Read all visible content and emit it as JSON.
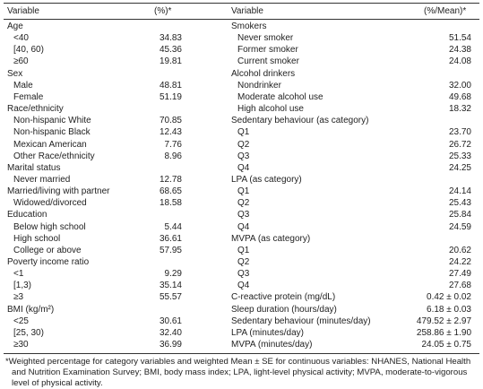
{
  "header": {
    "variable_left": "Variable",
    "value_left": "(%)*",
    "variable_right": "Variable",
    "value_right": "(%/Mean)*"
  },
  "left": [
    {
      "heading": "Age",
      "items": [
        [
          "<40",
          "34.83"
        ],
        [
          "[40, 60)",
          "45.36"
        ],
        [
          "≥60",
          "19.81"
        ]
      ]
    },
    {
      "heading": "Sex",
      "items": [
        [
          "Male",
          "48.81"
        ],
        [
          "Female",
          "51.19"
        ]
      ]
    },
    {
      "heading": "Race/ethnicity",
      "items": [
        [
          "Non-hispanic White",
          "70.85"
        ],
        [
          "Non-hispanic Black",
          "12.43"
        ],
        [
          "Mexican American",
          "7.76"
        ],
        [
          "Other Race/ethnicity",
          "8.96"
        ]
      ]
    },
    {
      "heading": "Marital status",
      "items": [
        [
          "Never married",
          "12.78"
        ]
      ]
    },
    {
      "heading": "Married/living with partner",
      "value": "68.65",
      "items": [
        [
          "Widowed/divorced",
          "18.58"
        ]
      ]
    },
    {
      "heading": "Education",
      "items": [
        [
          "Below high school",
          "5.44"
        ],
        [
          "High school",
          "36.61"
        ],
        [
          "College or above",
          "57.95"
        ]
      ]
    },
    {
      "heading": "Poverty income ratio",
      "items": [
        [
          "<1",
          "9.29"
        ],
        [
          "[1,3)",
          "35.14"
        ],
        [
          "≥3",
          "55.57"
        ]
      ]
    },
    {
      "heading": "BMI (kg/m²)",
      "items": [
        [
          "<25",
          "30.61"
        ],
        [
          "[25, 30)",
          "32.40"
        ],
        [
          "≥30",
          "36.99"
        ]
      ]
    }
  ],
  "right": [
    {
      "heading": "Smokers",
      "items": [
        [
          "Never smoker",
          "51.54"
        ],
        [
          "Former smoker",
          "24.38"
        ],
        [
          "Current smoker",
          "24.08"
        ]
      ]
    },
    {
      "heading": "Alcohol drinkers",
      "items": [
        [
          "Nondrinker",
          "32.00"
        ],
        [
          "Moderate alcohol use",
          "49.68"
        ],
        [
          "High alcohol use",
          "18.32"
        ]
      ]
    },
    {
      "heading": "Sedentary behaviour (as category)",
      "items": [
        [
          "Q1",
          "23.70"
        ],
        [
          "Q2",
          "26.72"
        ],
        [
          "Q3",
          "25.33"
        ],
        [
          "Q4",
          "24.25"
        ]
      ]
    },
    {
      "heading": "LPA (as category)",
      "items": [
        [
          "Q1",
          "24.14"
        ],
        [
          "Q2",
          "25.43"
        ],
        [
          "Q3",
          "25.84"
        ],
        [
          "Q4",
          "24.59"
        ]
      ]
    },
    {
      "heading": "MVPA (as category)",
      "items": [
        [
          "Q1",
          "20.62"
        ],
        [
          "Q2",
          "24.22"
        ],
        [
          "Q3",
          "27.49"
        ],
        [
          "Q4",
          "27.68"
        ]
      ]
    },
    {
      "heading": "C-reactive protein (mg/dL)",
      "value": "0.42 ± 0.02",
      "items": []
    },
    {
      "heading": "Sleep duration (hours/day)",
      "value": "6.18 ± 0.03",
      "items": []
    },
    {
      "heading": "Sedentary behaviour (minutes/day)",
      "value": "479.52 ± 2.97",
      "items": []
    },
    {
      "heading": "LPA (minutes/day)",
      "value": "258.86 ± 1.90",
      "items": []
    },
    {
      "heading": "MVPA (minutes/day)",
      "value": "24.05 ± 0.75",
      "items": []
    }
  ],
  "footnote": "*Weighted percentage for category variables and weighted Mean ± SE for continuous variables: NHANES, National Health and Nutrition Examination Survey; BMI, body mass index; LPA, light-level physical activity; MVPA, moderate-to-vigorous level of physical activity."
}
